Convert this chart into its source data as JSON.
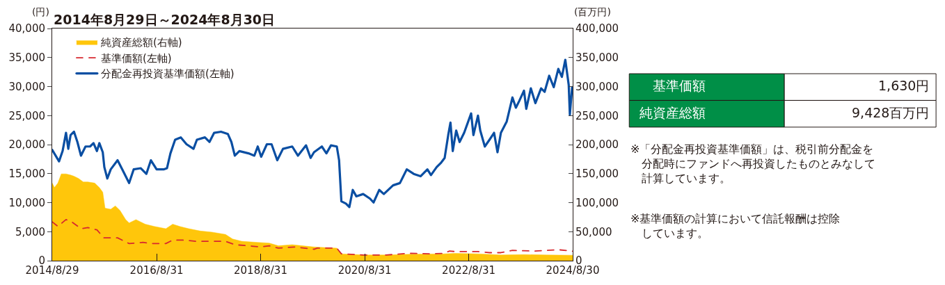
{
  "chart_data": {
    "type": "line",
    "title": "2014年8月29日～2024年8月30日",
    "ylabel": "(円)",
    "y2label": "(百万円)",
    "xlim": [
      "2014-08-29",
      "2024-08-30"
    ],
    "xticks": [
      {
        "value": "2014-08-29",
        "label": "2014/8/29"
      },
      {
        "value": "2016-08-31",
        "label": "2016/8/31"
      },
      {
        "value": "2018-08-31",
        "label": "2018/8/31"
      },
      {
        "value": "2020-08-31",
        "label": "2020/8/31"
      },
      {
        "value": "2022-08-31",
        "label": "2022/8/31"
      },
      {
        "value": "2024-08-30",
        "label": "2024/8/30"
      }
    ],
    "ylim": [
      0,
      40000
    ],
    "yticks": [
      0,
      {
        "value": 5000,
        "label": "5,000"
      },
      {
        "value": 10000,
        "label": "10,000"
      },
      {
        "value": 15000,
        "label": "15,000"
      },
      {
        "value": 20000,
        "label": "20,000"
      },
      {
        "value": 25000,
        "label": "25,000"
      },
      {
        "value": 30000,
        "label": "30,000"
      },
      {
        "value": 35000,
        "label": "35,000"
      },
      {
        "value": 40000,
        "label": "40,000"
      }
    ],
    "y2lim": [
      0,
      400000
    ],
    "y2ticks": [
      0,
      {
        "value": 50000,
        "label": "50,000"
      },
      {
        "value": 100000,
        "label": "100,000"
      },
      {
        "value": 150000,
        "label": "150,000"
      },
      {
        "value": 200000,
        "label": "200,000"
      },
      {
        "value": 250000,
        "label": "250,000"
      },
      {
        "value": 300000,
        "label": "300,000"
      },
      {
        "value": 350000,
        "label": "350,000"
      },
      {
        "value": 400000,
        "label": "400,000"
      }
    ],
    "legend": "top left",
    "marker": "none",
    "series": [
      {
        "name": "純資産総額(右軸)",
        "type": "area",
        "axis": "y2",
        "color": "#ffc60b",
        "x": [
          "2014-08-29",
          "2014-09-14",
          "2014-10-08",
          "2014-11-01",
          "2014-12-04",
          "2015-01-05",
          "2015-01-29",
          "2015-03-02",
          "2015-04-04",
          "2015-05-06",
          "2015-06-23",
          "2015-07-26",
          "2015-08-19",
          "2015-09-04",
          "2015-10-14",
          "2015-11-15",
          "2015-12-18",
          "2016-01-27",
          "2016-02-20",
          "2016-04-08",
          "2016-06-12",
          "2016-08-15",
          "2016-11-04",
          "2016-12-22",
          "2017-02-09",
          "2017-04-14",
          "2017-07-04",
          "2017-09-23",
          "2017-12-28",
          "2018-02-15",
          "2018-04-20",
          "2018-08-11",
          "2018-10-31",
          "2019-01-03",
          "2019-04-10",
          "2019-09-10",
          "2020-02-17",
          "2020-03-20",
          "2020-08-20",
          "2021-01-28",
          "2021-07-08",
          "2022-03-07",
          "2022-05-27",
          "2022-11-04",
          "2023-04-14",
          "2023-09-23",
          "2024-03-01",
          "2024-08-30"
        ],
        "values": [
          133700,
          125900,
          133700,
          149500,
          149500,
          147500,
          145500,
          141600,
          135700,
          135700,
          133700,
          125900,
          118000,
          90500,
          88500,
          94400,
          86500,
          70800,
          64900,
          70800,
          62900,
          59000,
          55100,
          62900,
          59000,
          55100,
          51100,
          49200,
          45200,
          37400,
          33400,
          31500,
          30300,
          25600,
          27500,
          23600,
          21600,
          11800,
          9800,
          9800,
          11000,
          11800,
          12600,
          11800,
          9800,
          10600,
          9800,
          9428
        ]
      },
      {
        "name": "基準価額(左軸)",
        "line_style": "dashed",
        "color": "#d7282f",
        "x": [
          "2014-08-29",
          "2014-10-08",
          "2014-12-04",
          "2015-01-13",
          "2015-03-19",
          "2015-05-06",
          "2015-07-09",
          "2015-08-27",
          "2015-10-14",
          "2015-12-01",
          "2016-02-20",
          "2016-05-27",
          "2016-07-30",
          "2016-11-04",
          "2016-12-22",
          "2017-03-13",
          "2017-06-02",
          "2017-09-23",
          "2017-12-28",
          "2018-03-03",
          "2018-06-07",
          "2018-08-27",
          "2018-10-31",
          "2019-01-03",
          "2019-04-26",
          "2019-09-10",
          "2019-10-03",
          "2020-02-17",
          "2020-03-20",
          "2020-08-20",
          "2021-01-28",
          "2021-07-08",
          "2021-12-17",
          "2022-03-07",
          "2022-04-17",
          "2022-05-27",
          "2022-11-04",
          "2023-01-24",
          "2023-04-14",
          "2023-07-04",
          "2023-12-12",
          "2024-05-21",
          "2024-08-30"
        ],
        "values": [
          6690,
          5900,
          7080,
          6690,
          5510,
          5700,
          5310,
          3930,
          3930,
          3930,
          2950,
          3150,
          2950,
          2950,
          3540,
          3540,
          3340,
          3340,
          3340,
          2750,
          2560,
          2360,
          2560,
          2160,
          2360,
          1970,
          2160,
          2160,
          1180,
          980,
          980,
          1260,
          1180,
          1260,
          1650,
          1570,
          1570,
          1380,
          1380,
          1770,
          1650,
          1890,
          1630
        ]
      },
      {
        "name": "分配金再投資基準価額(左軸)",
        "line_style": "solid",
        "color": "#0a4ea2",
        "x": [
          "2014-08-29",
          "2014-10-16",
          "2014-11-10",
          "2014-12-04",
          "2014-12-20",
          "2015-01-05",
          "2015-01-29",
          "2015-02-22",
          "2015-03-19",
          "2015-04-20",
          "2015-05-22",
          "2015-06-15",
          "2015-07-09",
          "2015-07-26",
          "2015-08-19",
          "2015-08-30",
          "2015-09-20",
          "2015-10-14",
          "2015-12-01",
          "2016-01-03",
          "2016-01-27",
          "2016-02-20",
          "2016-03-23",
          "2016-05-11",
          "2016-06-20",
          "2016-07-22",
          "2016-08-31",
          "2016-10-19",
          "2016-11-12",
          "2016-12-06",
          "2017-01-08",
          "2017-02-17",
          "2017-03-29",
          "2017-05-17",
          "2017-06-10",
          "2017-08-05",
          "2017-09-06",
          "2017-10-09",
          "2017-11-26",
          "2018-01-13",
          "2018-02-07",
          "2018-03-03",
          "2018-04-04",
          "2018-06-07",
          "2018-07-18",
          "2018-08-11",
          "2018-09-04",
          "2018-10-14",
          "2018-11-16",
          "2018-12-26",
          "2019-02-04",
          "2019-04-10",
          "2019-05-20",
          "2019-07-16",
          "2019-08-17",
          "2019-09-10",
          "2019-11-04",
          "2019-12-06",
          "2020-01-07",
          "2020-02-17",
          "2020-03-04",
          "2020-03-20",
          "2020-04-21",
          "2020-05-15",
          "2020-06-08",
          "2020-07-03",
          "2020-08-20",
          "2020-10-07",
          "2020-11-01",
          "2020-12-11",
          "2021-01-12",
          "2021-03-18",
          "2021-05-05",
          "2021-06-22",
          "2021-08-10",
          "2021-09-27",
          "2021-11-14",
          "2021-12-09",
          "2022-01-18",
          "2022-02-19",
          "2022-03-15",
          "2022-04-09",
          "2022-04-25",
          "2022-05-11",
          "2022-06-04",
          "2022-06-28",
          "2022-07-30",
          "2022-09-17",
          "2022-10-03",
          "2022-11-04",
          "2022-11-20",
          "2022-12-22",
          "2023-01-24",
          "2023-02-25",
          "2023-03-21",
          "2023-04-14",
          "2023-05-25",
          "2023-07-04",
          "2023-07-28",
          "2023-08-21",
          "2023-09-23",
          "2023-10-09",
          "2023-11-10",
          "2023-12-12",
          "2024-01-21",
          "2024-02-15",
          "2024-03-18",
          "2024-04-19",
          "2024-05-21",
          "2024-06-15",
          "2024-07-09",
          "2024-08-02",
          "2024-08-10",
          "2024-08-26",
          "2024-08-30"
        ],
        "values": [
          19080,
          17110,
          18880,
          22030,
          19270,
          21630,
          22220,
          20450,
          18090,
          19670,
          19670,
          20250,
          18880,
          20250,
          18680,
          16120,
          14160,
          15730,
          17300,
          15730,
          14550,
          13370,
          15730,
          15930,
          14950,
          17300,
          15730,
          15730,
          15930,
          18490,
          20840,
          21240,
          20060,
          19270,
          20840,
          21240,
          20450,
          22030,
          22220,
          21830,
          20450,
          18090,
          18880,
          18490,
          18090,
          19670,
          17900,
          20060,
          20060,
          17300,
          19270,
          19670,
          18090,
          19870,
          17700,
          18680,
          19670,
          18490,
          19870,
          19670,
          17300,
          10230,
          9830,
          9240,
          12190,
          11090,
          11480,
          10690,
          10030,
          12190,
          11480,
          12980,
          13370,
          15730,
          14950,
          14550,
          15730,
          14750,
          16120,
          16910,
          17700,
          21630,
          23790,
          18880,
          22420,
          20450,
          22030,
          25370,
          21630,
          24980,
          22420,
          19670,
          20840,
          22030,
          18680,
          22030,
          23990,
          28120,
          26350,
          27530,
          29300,
          26150,
          29690,
          27140,
          29690,
          29100,
          31860,
          29890,
          33040,
          31660,
          34610,
          30280,
          25170,
          29890,
          29500
        ]
      }
    ],
    "annotations": [
      "基準価額",
      "1,630円",
      "純資産総額",
      "9,428百万円",
      "※「分配金再投資基準価額」は、税引前分配金を分配時にファンドへ再投資したものとみなして計算しています。",
      "※基準価額の計算において信託報酬は控除しています。"
    ]
  }
}
